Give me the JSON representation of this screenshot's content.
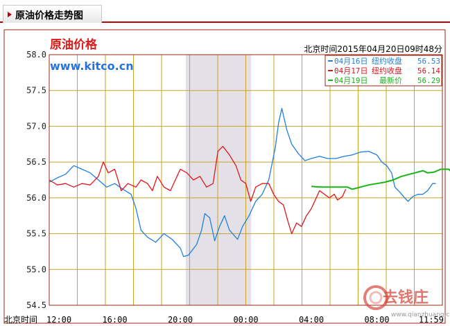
{
  "tab": {
    "title": "原油价格走势图"
  },
  "header": {
    "chart_title": "原油价格",
    "site": "www.kitco.cn",
    "timestamp": "北京时间2015年04月20日09时48分"
  },
  "colors": {
    "frame": "#9e2a14",
    "grid": "#c9a227",
    "shade": "#e3e0e8",
    "blue": "#1e7fdc",
    "red": "#e3141b",
    "green": "#17b417"
  },
  "watermark": {
    "text": "去钱庄",
    "url": "www.qianzhuang.com"
  },
  "chart_data": {
    "type": "line",
    "x_axis_title": "北京时间",
    "x_ticks": [
      "12:00",
      "16:00",
      "20:00",
      "00:00",
      "04:00",
      "08:00",
      "11:59"
    ],
    "ylim": [
      54.5,
      58.0
    ],
    "y_ticks": [
      "58.0",
      "57.5",
      "57.0",
      "56.5",
      "56.0",
      "55.5",
      "55.0",
      "54.5"
    ],
    "grid": true,
    "legend_position": "top-right",
    "shaded_region_hours": [
      8.33,
      12.33
    ],
    "series": [
      {
        "name": "04月16日",
        "label": "纽约收盘",
        "value": "56.53",
        "color": "#1e7fdc",
        "points": [
          [
            0,
            56.22
          ],
          [
            0.5,
            56.28
          ],
          [
            1,
            56.33
          ],
          [
            1.5,
            56.45
          ],
          [
            2,
            56.4
          ],
          [
            2.5,
            56.35
          ],
          [
            3,
            56.25
          ],
          [
            3.5,
            56.15
          ],
          [
            4,
            56.2
          ],
          [
            4.5,
            56.12
          ],
          [
            5,
            56.05
          ],
          [
            5.3,
            55.85
          ],
          [
            5.6,
            55.55
          ],
          [
            6,
            55.45
          ],
          [
            6.5,
            55.38
          ],
          [
            7,
            55.5
          ],
          [
            7.5,
            55.42
          ],
          [
            8,
            55.3
          ],
          [
            8.2,
            55.18
          ],
          [
            8.5,
            55.2
          ],
          [
            9,
            55.35
          ],
          [
            9.3,
            55.55
          ],
          [
            9.5,
            55.78
          ],
          [
            9.8,
            55.72
          ],
          [
            10.1,
            55.4
          ],
          [
            10.4,
            55.6
          ],
          [
            10.7,
            55.75
          ],
          [
            11,
            55.55
          ],
          [
            11.5,
            55.42
          ],
          [
            11.8,
            55.6
          ],
          [
            12.2,
            55.75
          ],
          [
            12.6,
            55.95
          ],
          [
            13,
            56.05
          ],
          [
            13.4,
            56.25
          ],
          [
            13.8,
            56.7
          ],
          [
            14.0,
            57.05
          ],
          [
            14.2,
            57.25
          ],
          [
            14.5,
            56.95
          ],
          [
            14.8,
            56.75
          ],
          [
            15.2,
            56.62
          ],
          [
            15.6,
            56.52
          ],
          [
            16,
            56.55
          ],
          [
            16.5,
            56.58
          ],
          [
            17,
            56.55
          ],
          [
            17.5,
            56.55
          ],
          [
            18,
            56.58
          ],
          [
            18.5,
            56.6
          ],
          [
            19,
            56.64
          ],
          [
            19.5,
            56.65
          ],
          [
            20,
            56.6
          ],
          [
            20.3,
            56.5
          ],
          [
            20.6,
            56.45
          ],
          [
            20.9,
            56.35
          ],
          [
            21.1,
            56.15
          ],
          [
            21.4,
            56.08
          ],
          [
            21.7,
            56.0
          ],
          [
            21.9,
            55.95
          ],
          [
            22.2,
            56.02
          ],
          [
            22.5,
            56.05
          ],
          [
            22.8,
            56.05
          ],
          [
            23.1,
            56.1
          ],
          [
            23.4,
            56.2
          ],
          [
            23.6,
            56.2
          ]
        ]
      },
      {
        "name": "04月17日",
        "label": "纽约收盘",
        "value": "56.14",
        "color": "#e3141b",
        "points": [
          [
            0,
            56.25
          ],
          [
            0.5,
            56.18
          ],
          [
            1,
            56.2
          ],
          [
            1.5,
            56.15
          ],
          [
            2,
            56.2
          ],
          [
            2.5,
            56.18
          ],
          [
            3,
            56.3
          ],
          [
            3.3,
            56.5
          ],
          [
            3.6,
            56.35
          ],
          [
            4,
            56.4
          ],
          [
            4.4,
            56.1
          ],
          [
            4.8,
            56.2
          ],
          [
            5.3,
            56.15
          ],
          [
            5.6,
            56.25
          ],
          [
            6,
            56.2
          ],
          [
            6.3,
            56.1
          ],
          [
            6.6,
            56.3
          ],
          [
            7,
            56.15
          ],
          [
            7.4,
            56.1
          ],
          [
            7.7,
            56.25
          ],
          [
            8,
            56.4
          ],
          [
            8.4,
            56.35
          ],
          [
            8.8,
            56.25
          ],
          [
            9.2,
            56.3
          ],
          [
            9.6,
            56.15
          ],
          [
            10,
            56.2
          ],
          [
            10.3,
            56.65
          ],
          [
            10.6,
            56.72
          ],
          [
            11,
            56.6
          ],
          [
            11.4,
            56.45
          ],
          [
            11.7,
            56.25
          ],
          [
            12,
            56.2
          ],
          [
            12.3,
            55.95
          ],
          [
            12.6,
            56.15
          ],
          [
            13,
            56.2
          ],
          [
            13.4,
            56.2
          ],
          [
            13.7,
            56.05
          ],
          [
            14,
            55.95
          ],
          [
            14.3,
            55.9
          ],
          [
            14.6,
            55.65
          ],
          [
            14.8,
            55.5
          ],
          [
            15.1,
            55.65
          ],
          [
            15.4,
            55.6
          ],
          [
            15.7,
            55.75
          ],
          [
            16,
            55.85
          ],
          [
            16.3,
            56.0
          ],
          [
            16.5,
            56.1
          ],
          [
            16.8,
            56.05
          ],
          [
            17.1,
            56.0
          ],
          [
            17.4,
            56.05
          ],
          [
            17.6,
            55.97
          ],
          [
            17.9,
            56.02
          ],
          [
            18.1,
            56.12
          ]
        ]
      },
      {
        "name": "04月19日",
        "label": "最新价",
        "value": "56.29",
        "color": "#17b417",
        "points": [
          [
            16.0,
            56.16
          ],
          [
            16.5,
            56.15
          ],
          [
            17,
            56.15
          ],
          [
            17.5,
            56.15
          ],
          [
            18,
            56.15
          ],
          [
            18.2,
            56.15
          ],
          [
            18.5,
            56.12
          ],
          [
            19,
            56.15
          ],
          [
            19.5,
            56.18
          ],
          [
            20,
            56.2
          ],
          [
            20.5,
            56.22
          ],
          [
            21,
            56.25
          ],
          [
            21.5,
            56.3
          ],
          [
            22,
            56.33
          ],
          [
            22.5,
            56.36
          ],
          [
            22.8,
            56.38
          ],
          [
            23.1,
            56.35
          ],
          [
            23.5,
            56.36
          ],
          [
            23.9,
            56.4
          ],
          [
            24.4,
            56.4
          ],
          [
            24.8,
            56.3
          ]
        ]
      }
    ]
  }
}
